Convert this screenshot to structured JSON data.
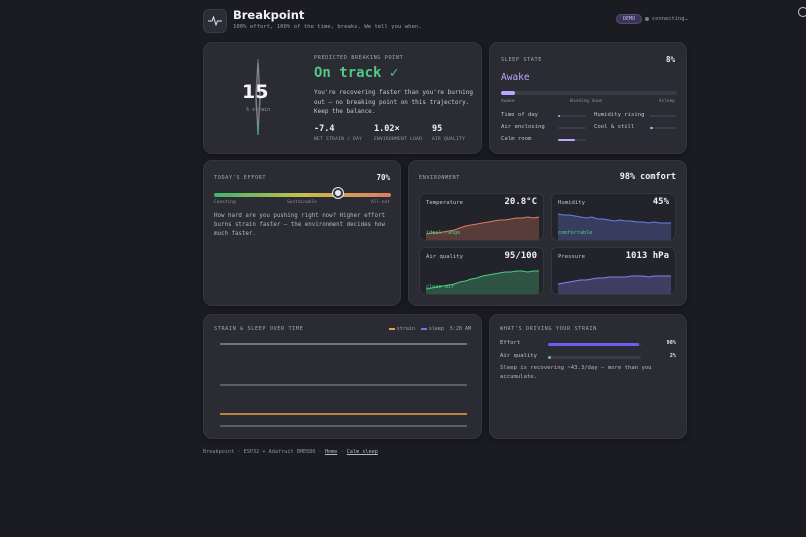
{
  "header": {
    "title": "Breakpoint",
    "subtitle": "100% effort, 100% of the time, breaks. We tell you when.",
    "badge": "DEMO",
    "connection": "connecting…"
  },
  "prediction": {
    "label": "PREDICTED BREAKING POINT",
    "status": "On track ✓",
    "description": "You're recovering faster than you're burning out — no breaking point on this trajectory. Keep the balance.",
    "strain_value": "15",
    "strain_label": "% strain",
    "stats": [
      {
        "value": "-7.4",
        "label": "NET STRAIN / DAY"
      },
      {
        "value": "1.02×",
        "label": "ENVIRONMENT LOAD"
      },
      {
        "value": "95",
        "label": "AIR QUALITY"
      }
    ]
  },
  "sleep": {
    "label": "SLEEP STATE",
    "percent": "8%",
    "percent_value": 8,
    "state": "Awake",
    "scale": [
      "Awake",
      "Winding down",
      "Asleep"
    ],
    "factors": [
      {
        "name": "Time of day",
        "level": 0.05
      },
      {
        "name": "Humidity rising",
        "level": 0.0
      },
      {
        "name": "Air enclosing",
        "level": 0.0
      },
      {
        "name": "Cool & still",
        "level": 0.1
      },
      {
        "name": "Calm room",
        "level": 0.6
      }
    ]
  },
  "effort": {
    "label": "TODAY'S EFFORT",
    "percent": "70%",
    "value": 0.7,
    "scale": [
      "Coasting",
      "Sustainable",
      "All-out"
    ],
    "description": "How hard are you pushing right now? Higher effort burns strain faster — the environment decides how much faster."
  },
  "environment": {
    "label": "ENVIRONMENT",
    "comfort": "98% comfort",
    "tiles": [
      {
        "name": "Temperature",
        "value": "20.8°C",
        "note": "ideal range",
        "color": "#e07a5f"
      },
      {
        "name": "Humidity",
        "value": "45%",
        "note": "comfortable",
        "color": "#6d7fe6"
      },
      {
        "name": "Air quality",
        "value": "95/100",
        "note": "clean air",
        "color": "#4ecb83"
      },
      {
        "name": "Pressure",
        "value": "1013 hPa",
        "note": "",
        "color": "#8f7cf0"
      }
    ]
  },
  "strain_chart": {
    "label": "STRAIN & SLEEP OVER TIME",
    "legend": [
      "strain",
      "sleep"
    ],
    "time": "5:28 AM",
    "colors": {
      "strain": "#e6a23c",
      "sleep": "#7c6cf0"
    }
  },
  "drivers": {
    "label": "WHAT'S DRIVING YOUR STRAIN",
    "items": [
      {
        "name": "Effort",
        "percent": "98%",
        "value": 0.98,
        "color": "#6a5ff0"
      },
      {
        "name": "Air quality",
        "percent": "2%",
        "value": 0.02,
        "color": "#4ecb83"
      }
    ],
    "description": "Sleep is recovering ~43.3/day — more than you accumulate."
  },
  "footer": {
    "text": "Breakpoint · ESP32 + Adafruit BME680 ·",
    "link1": "Home",
    "sep": "·",
    "link2": "Calm sleep"
  }
}
